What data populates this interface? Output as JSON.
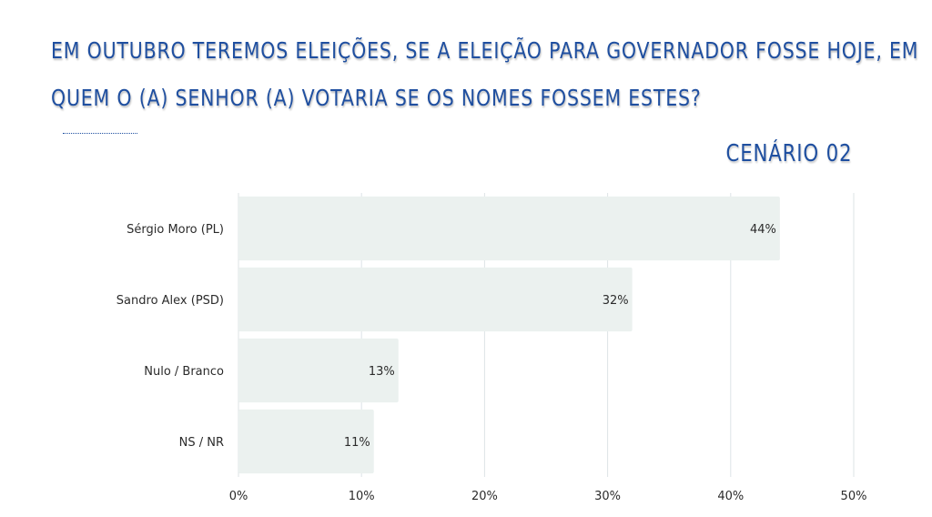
{
  "header": {
    "title_line1": "EM OUTUBRO TEREMOS ELEIÇÕES, SE A ELEIÇÃO PARA GOVERNADOR  FOSSE HOJE, EM",
    "title_line2": "QUEM O (A) SENHOR (A) VOTARIA SE OS NOMES FOSSEM ESTES?",
    "scenario": "CENÁRIO 02"
  },
  "colors": {
    "title": "#1f4fa0",
    "bar": "#ebf1ef",
    "grid": "#dde3e6",
    "text": "#2b2b2b"
  },
  "chart_data": {
    "type": "bar",
    "orientation": "horizontal",
    "categories": [
      "Sérgio Moro (PL)",
      "Sandro Alex (PSD)",
      "Nulo / Branco",
      "NS / NR"
    ],
    "values": [
      44,
      32,
      13,
      11
    ],
    "value_labels": [
      "44%",
      "32%",
      "13%",
      "11%"
    ],
    "xlim": [
      0,
      50
    ],
    "x_ticks": [
      "0%",
      "10%",
      "20%",
      "30%",
      "40%",
      "50%"
    ],
    "grid": true,
    "legend": "none",
    "xlabel": "",
    "ylabel": ""
  }
}
